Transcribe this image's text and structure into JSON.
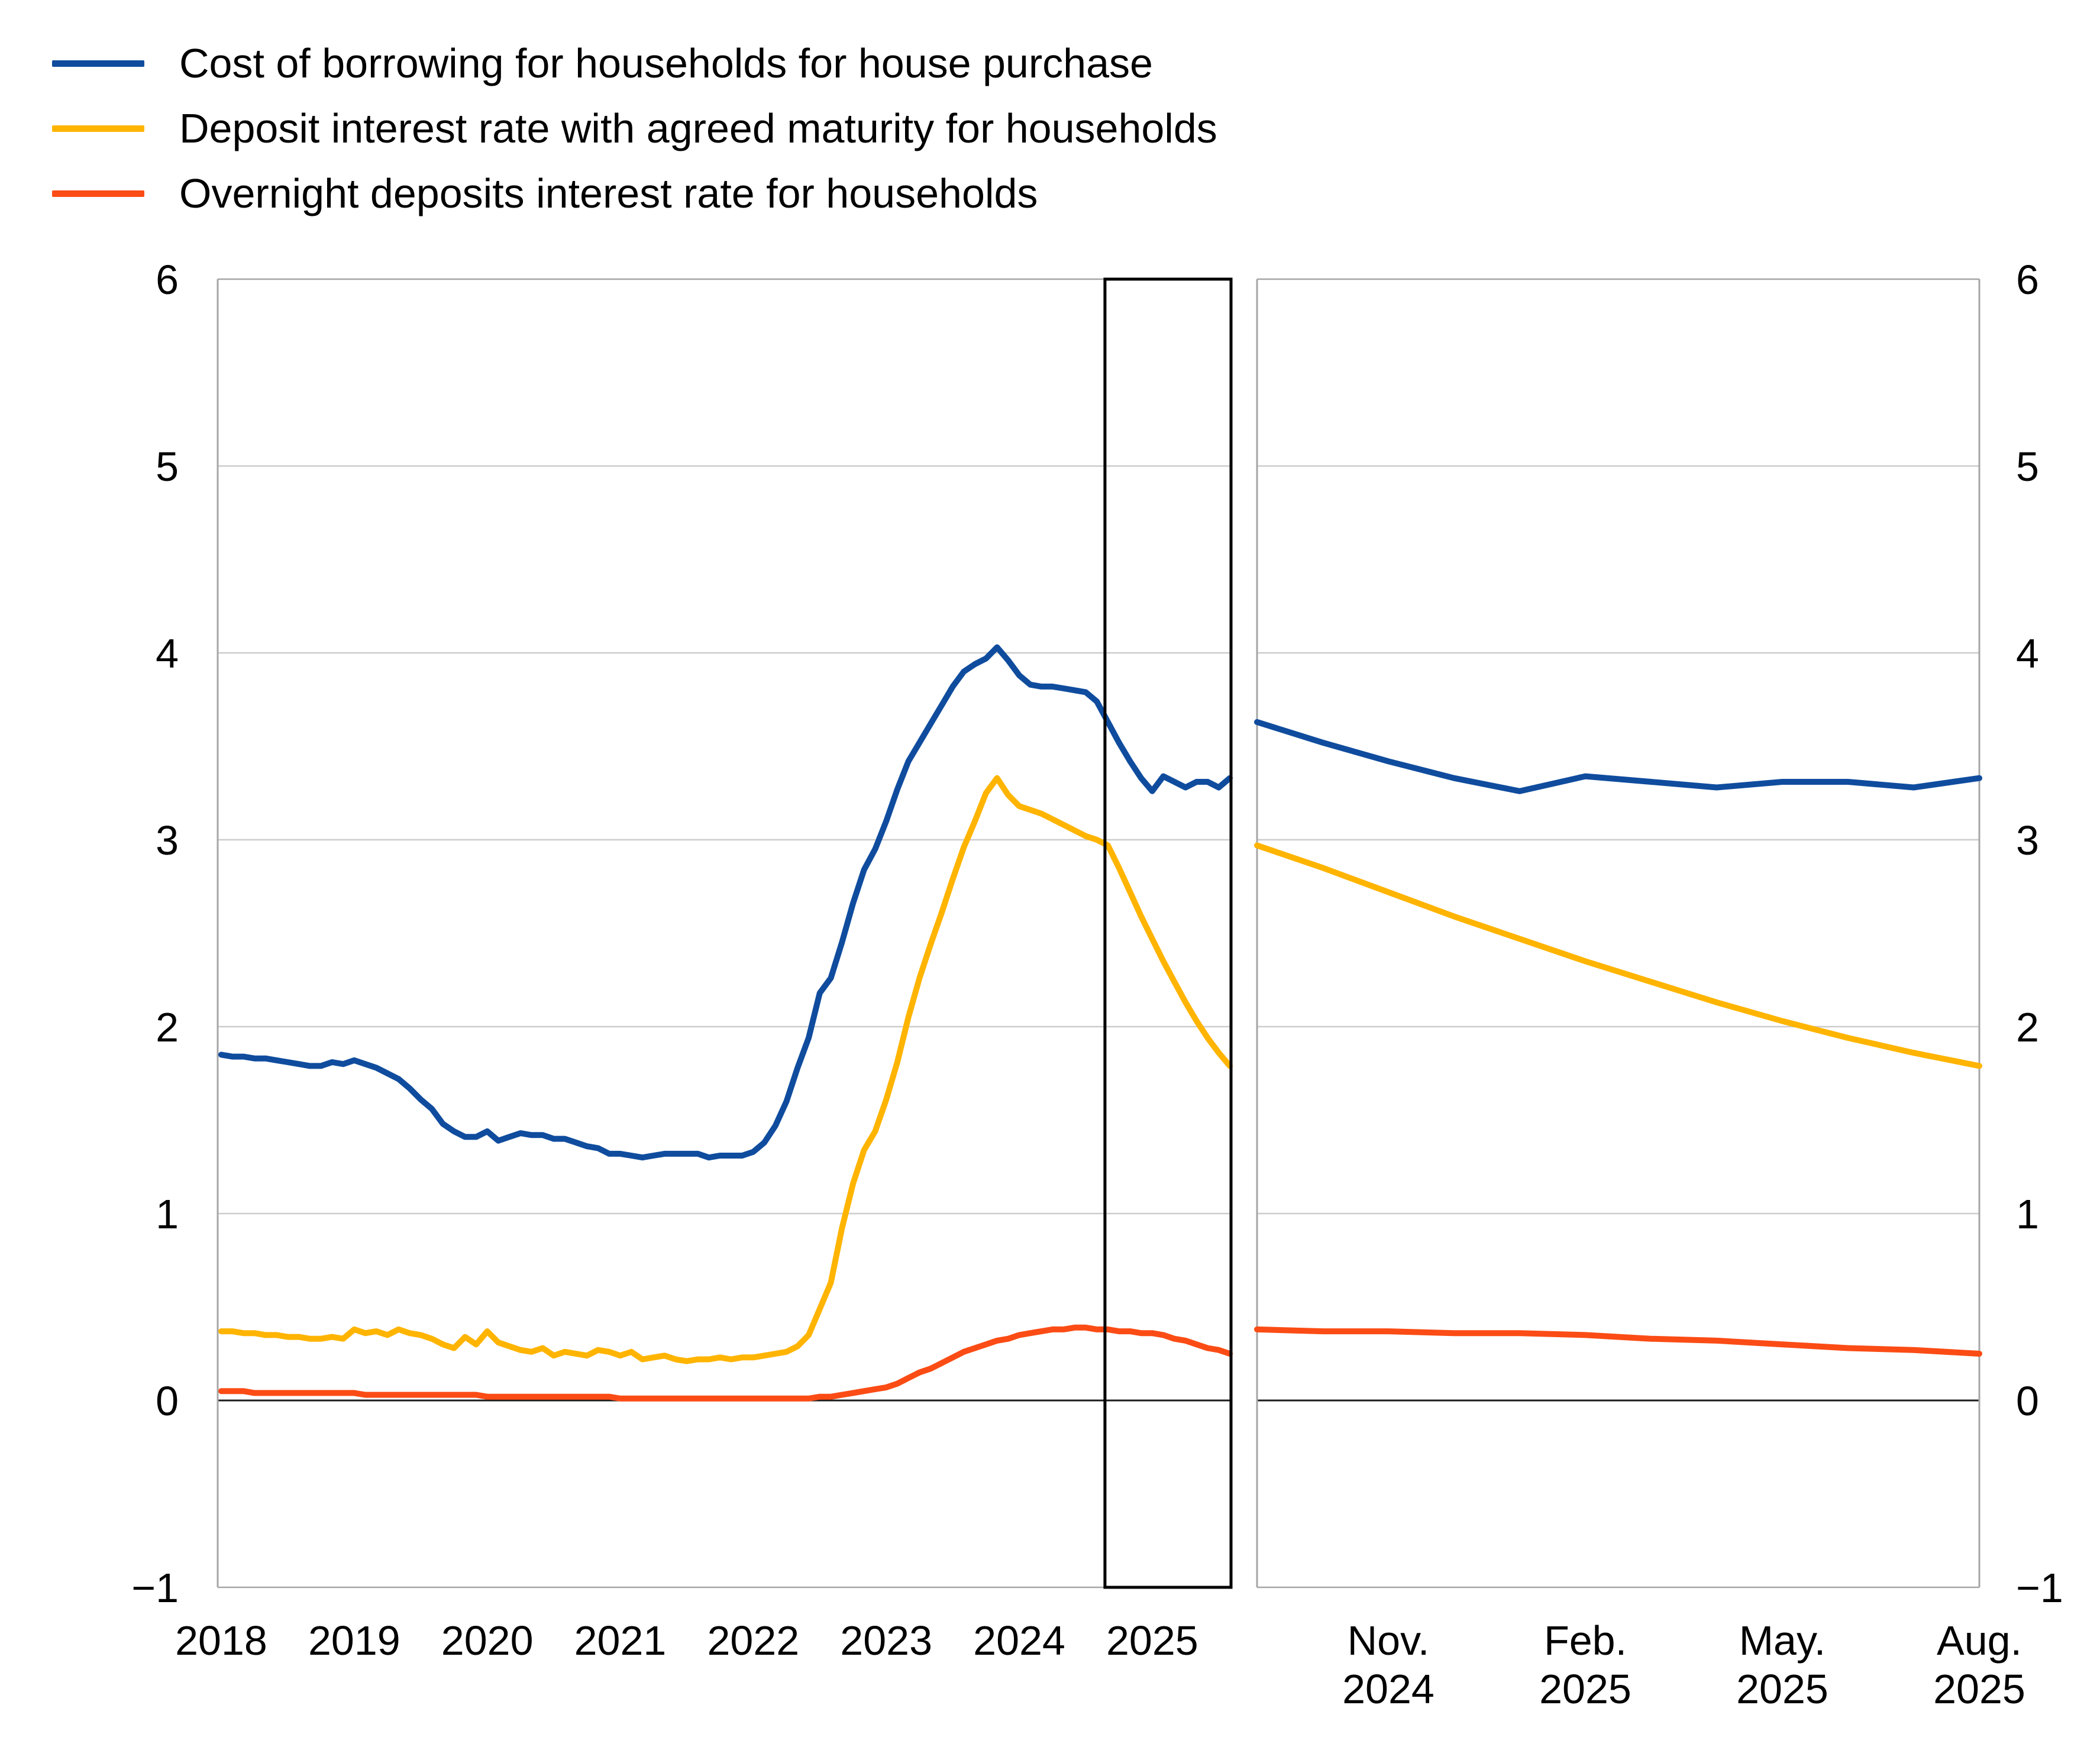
{
  "legend": {
    "items": [
      {
        "label": "Cost of borrowing for households for house purchase",
        "color": "#0f4c9e"
      },
      {
        "label": "Deposit interest rate with agreed maturity for households",
        "color": "#ffb400"
      },
      {
        "label": "Overnight deposits interest rate for households",
        "color": "#fb4c15"
      }
    ]
  },
  "chart_data": {
    "type": "line",
    "title": "",
    "xlabel": "",
    "ylabel": "",
    "ylim": [
      -1,
      6
    ],
    "grid": "horizontal integer gridlines, darker line at 0",
    "legend_position": "top-left",
    "y_ticks": [
      {
        "value": 6,
        "label": "6"
      },
      {
        "value": 5,
        "label": "5"
      },
      {
        "value": 4,
        "label": "4"
      },
      {
        "value": 3,
        "label": "3"
      },
      {
        "value": 2,
        "label": "2"
      },
      {
        "value": 1,
        "label": "1"
      },
      {
        "value": 0,
        "label": "0"
      },
      {
        "value": -1,
        "label": "−1"
      }
    ],
    "panels": [
      {
        "id": "history",
        "description": "Monthly data Jan 2018 - Aug 2025, y axis labels on left side",
        "x_tick_labels": [
          {
            "label": "2018",
            "month_index": 0
          },
          {
            "label": "2019",
            "month_index": 12
          },
          {
            "label": "2020",
            "month_index": 24
          },
          {
            "label": "2021",
            "month_index": 36
          },
          {
            "label": "2022",
            "month_index": 48
          },
          {
            "label": "2023",
            "month_index": 60
          },
          {
            "label": "2024",
            "month_index": 72
          },
          {
            "label": "2025",
            "month_index": 84
          }
        ],
        "highlight_box": {
          "start_month_index": 80,
          "end_month_index": 91,
          "meaning": "Sep 2024 - Aug 2025, zoomed in right panel"
        },
        "series": [
          {
            "name": "Cost of borrowing for households for house purchase",
            "color": "#0f4c9e",
            "values": [
              1.85,
              1.84,
              1.84,
              1.83,
              1.83,
              1.82,
              1.81,
              1.8,
              1.79,
              1.79,
              1.81,
              1.8,
              1.82,
              1.8,
              1.78,
              1.75,
              1.72,
              1.67,
              1.61,
              1.56,
              1.48,
              1.44,
              1.41,
              1.41,
              1.44,
              1.39,
              1.41,
              1.43,
              1.42,
              1.42,
              1.4,
              1.4,
              1.38,
              1.36,
              1.35,
              1.32,
              1.32,
              1.31,
              1.3,
              1.31,
              1.32,
              1.32,
              1.32,
              1.32,
              1.3,
              1.31,
              1.31,
              1.31,
              1.33,
              1.38,
              1.47,
              1.6,
              1.78,
              1.94,
              2.18,
              2.26,
              2.45,
              2.66,
              2.84,
              2.95,
              3.1,
              3.27,
              3.42,
              3.52,
              3.62,
              3.72,
              3.82,
              3.9,
              3.94,
              3.97,
              4.03,
              3.96,
              3.88,
              3.83,
              3.82,
              3.82,
              3.81,
              3.8,
              3.79,
              3.74,
              3.63,
              3.52,
              3.42,
              3.33,
              3.26,
              3.34,
              3.31,
              3.28,
              3.31,
              3.31,
              3.28,
              3.33
            ]
          },
          {
            "name": "Deposit interest rate with agreed maturity for households",
            "color": "#ffb400",
            "values": [
              0.37,
              0.37,
              0.36,
              0.36,
              0.35,
              0.35,
              0.34,
              0.34,
              0.33,
              0.33,
              0.34,
              0.33,
              0.38,
              0.36,
              0.37,
              0.35,
              0.38,
              0.36,
              0.35,
              0.33,
              0.3,
              0.28,
              0.34,
              0.3,
              0.37,
              0.31,
              0.29,
              0.27,
              0.26,
              0.28,
              0.24,
              0.26,
              0.25,
              0.24,
              0.27,
              0.26,
              0.24,
              0.26,
              0.22,
              0.23,
              0.24,
              0.22,
              0.21,
              0.22,
              0.22,
              0.23,
              0.22,
              0.23,
              0.23,
              0.24,
              0.25,
              0.26,
              0.29,
              0.35,
              0.49,
              0.63,
              0.92,
              1.16,
              1.34,
              1.44,
              1.61,
              1.81,
              2.05,
              2.26,
              2.44,
              2.61,
              2.79,
              2.96,
              3.1,
              3.25,
              3.33,
              3.24,
              3.18,
              3.16,
              3.14,
              3.11,
              3.08,
              3.05,
              3.02,
              3.0,
              2.97,
              2.85,
              2.72,
              2.59,
              2.47,
              2.35,
              2.24,
              2.13,
              2.03,
              1.94,
              1.86,
              1.79
            ]
          },
          {
            "name": "Overnight deposits interest rate for households",
            "color": "#fb4c15",
            "values": [
              0.05,
              0.05,
              0.05,
              0.04,
              0.04,
              0.04,
              0.04,
              0.04,
              0.04,
              0.04,
              0.04,
              0.04,
              0.04,
              0.03,
              0.03,
              0.03,
              0.03,
              0.03,
              0.03,
              0.03,
              0.03,
              0.03,
              0.03,
              0.03,
              0.02,
              0.02,
              0.02,
              0.02,
              0.02,
              0.02,
              0.02,
              0.02,
              0.02,
              0.02,
              0.02,
              0.02,
              0.01,
              0.01,
              0.01,
              0.01,
              0.01,
              0.01,
              0.01,
              0.01,
              0.01,
              0.01,
              0.01,
              0.01,
              0.01,
              0.01,
              0.01,
              0.01,
              0.01,
              0.01,
              0.02,
              0.02,
              0.03,
              0.04,
              0.05,
              0.06,
              0.07,
              0.09,
              0.12,
              0.15,
              0.17,
              0.2,
              0.23,
              0.26,
              0.28,
              0.3,
              0.32,
              0.33,
              0.35,
              0.36,
              0.37,
              0.38,
              0.38,
              0.39,
              0.39,
              0.38,
              0.38,
              0.37,
              0.37,
              0.36,
              0.36,
              0.35,
              0.33,
              0.32,
              0.3,
              0.28,
              0.27,
              0.25
            ]
          }
        ]
      },
      {
        "id": "zoom",
        "description": "Monthly data Sep 2024 - Aug 2025, y axis labels on right side",
        "x_tick_labels": [
          {
            "label_line1": "Nov.",
            "label_line2": "2024",
            "month_index": 2
          },
          {
            "label_line1": "Feb.",
            "label_line2": "2025",
            "month_index": 5
          },
          {
            "label_line1": "May.",
            "label_line2": "2025",
            "month_index": 8
          },
          {
            "label_line1": "Aug.",
            "label_line2": "2025",
            "month_index": 11
          }
        ],
        "series": [
          {
            "name": "Cost of borrowing for households for house purchase",
            "color": "#0f4c9e",
            "values": [
              3.63,
              3.52,
              3.42,
              3.33,
              3.26,
              3.34,
              3.31,
              3.28,
              3.31,
              3.31,
              3.28,
              3.33
            ]
          },
          {
            "name": "Deposit interest rate with agreed maturity for households",
            "color": "#ffb400",
            "values": [
              2.97,
              2.85,
              2.72,
              2.59,
              2.47,
              2.35,
              2.24,
              2.13,
              2.03,
              1.94,
              1.86,
              1.79
            ]
          },
          {
            "name": "Overnight deposits interest rate for households",
            "color": "#fb4c15",
            "values": [
              0.38,
              0.37,
              0.37,
              0.36,
              0.36,
              0.35,
              0.33,
              0.32,
              0.3,
              0.28,
              0.27,
              0.25
            ]
          }
        ]
      }
    ]
  },
  "style": {
    "gridline_color": "#cccccc",
    "border_color": "#a6a6a6",
    "zero_line_color": "#1c1c1c",
    "highlight_box_color": "#000000",
    "text_color": "#000000"
  }
}
